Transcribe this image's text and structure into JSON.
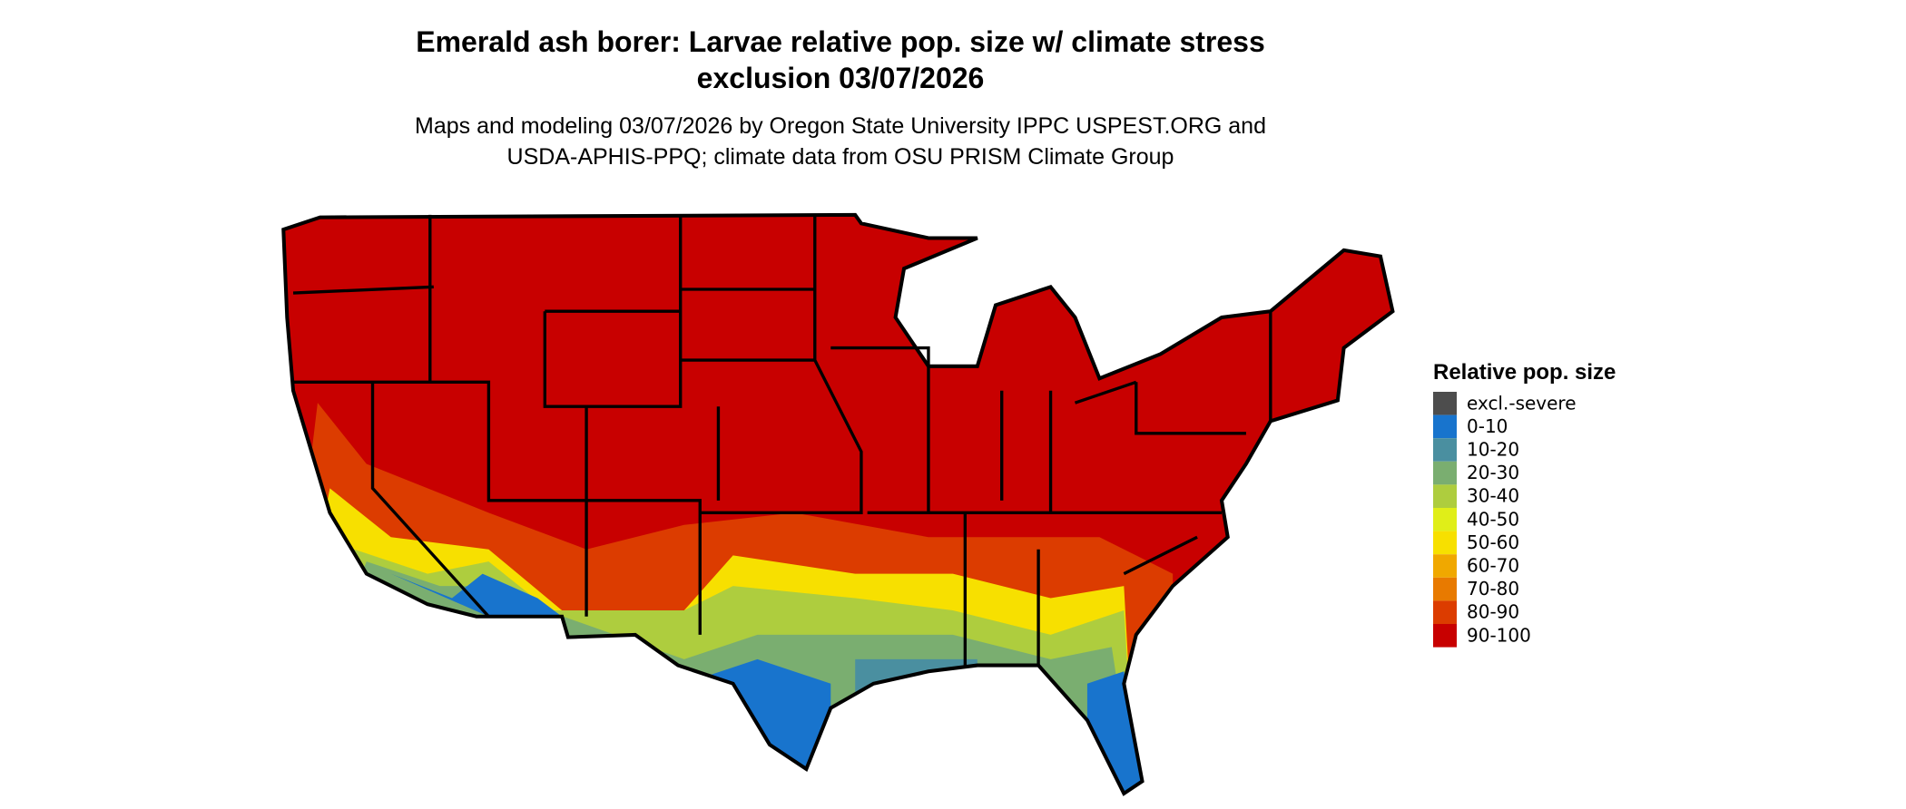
{
  "header": {
    "title": [
      "Emerald ash borer: Larvae relative pop. size w/ climate stress",
      "exclusion 03/07/2026"
    ],
    "subtitle": [
      "Maps and modeling 03/07/2026 by Oregon State University IPPC USPEST.ORG and",
      "USDA-APHIS-PPQ; climate data from OSU PRISM Climate Group"
    ]
  },
  "legend": {
    "title": "Relative pop. size",
    "items": [
      {
        "label": "excl.-severe",
        "color": "#4d4d4d"
      },
      {
        "label": "0-10",
        "color": "#1874cd"
      },
      {
        "label": "10-20",
        "color": "#4a8fa0"
      },
      {
        "label": "20-30",
        "color": "#7aae70"
      },
      {
        "label": "30-40",
        "color": "#aecd3e"
      },
      {
        "label": "40-50",
        "color": "#e0ee18"
      },
      {
        "label": "50-60",
        "color": "#f7e000"
      },
      {
        "label": "60-70",
        "color": "#f0a800"
      },
      {
        "label": "70-80",
        "color": "#e87a00"
      },
      {
        "label": "80-90",
        "color": "#dc3c00"
      },
      {
        "label": "90-100",
        "color": "#c80000"
      }
    ]
  }
}
